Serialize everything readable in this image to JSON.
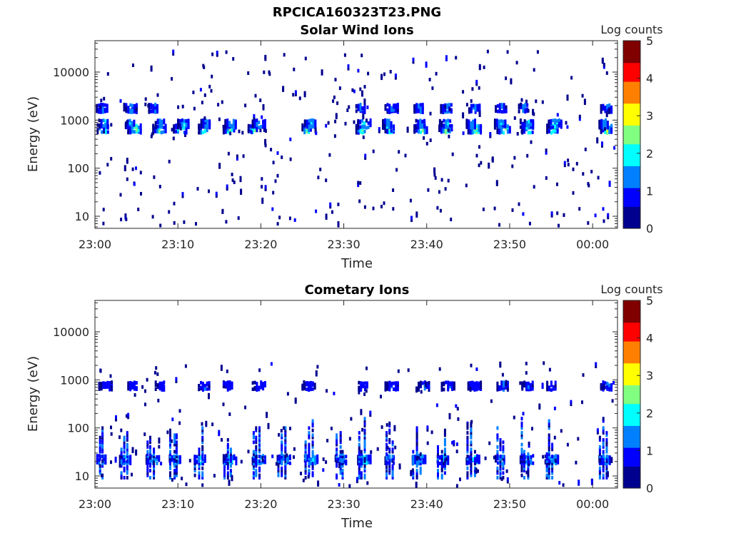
{
  "figure_title": "RPCICA160323T23.PNG",
  "colormap": [
    "#00008f",
    "#0000ff",
    "#0080ff",
    "#00ffff",
    "#80ff80",
    "#ffff00",
    "#ff8000",
    "#ff0000",
    "#800000"
  ],
  "chart_data": [
    {
      "type": "heatmap",
      "title": "Solar Wind Ions",
      "xlabel": "Time",
      "ylabel": "Energy (eV)",
      "yscale": "log",
      "ylim": [
        5.6,
        45000
      ],
      "xlim": [
        "23:00",
        "00:03"
      ],
      "xticks": [
        "23:00",
        "23:10",
        "23:20",
        "23:30",
        "23:40",
        "23:50",
        "00:00"
      ],
      "yticks": [
        "10",
        "100",
        "1000",
        "10000"
      ],
      "colorbar": {
        "label": "Log counts",
        "range": [
          0,
          5
        ],
        "ticks": [
          "0",
          "1",
          "2",
          "3",
          "4",
          "5"
        ]
      },
      "bands": [
        {
          "center_ev": 750,
          "minutes": [
            0.8,
            4.5,
            7.5,
            10,
            13,
            16,
            19,
            25.5,
            32,
            35.5,
            39,
            42,
            45.5,
            49,
            52,
            55,
            61.5
          ],
          "peak": 2.4
        },
        {
          "center_ev": 950,
          "minutes": [
            1,
            4.2,
            7.8,
            10.5,
            13.3,
            16.2,
            19.5,
            25.8,
            32.2,
            35.2,
            39.2,
            42.3,
            45.3,
            48.7,
            51.8,
            55.2,
            61.3
          ],
          "peak": 1.6
        },
        {
          "center_ev": 2000,
          "minutes": [
            0.7,
            4,
            7,
            32,
            35.5,
            39,
            42.2,
            45.6,
            48.8,
            51.6,
            61.5
          ],
          "peak": 1.2
        }
      ],
      "scatter_ev_range": [
        6,
        30000
      ],
      "scatter_count": 340
    },
    {
      "type": "heatmap",
      "title": "Cometary Ions",
      "xlabel": "Time",
      "ylabel": "Energy (eV)",
      "yscale": "log",
      "ylim": [
        5.6,
        45000
      ],
      "xlim": [
        "23:00",
        "00:03"
      ],
      "xticks": [
        "23:00",
        "23:10",
        "23:20",
        "23:30",
        "23:40",
        "23:50",
        "00:00"
      ],
      "yticks": [
        "10",
        "100",
        "1000",
        "10000"
      ],
      "colorbar": {
        "label": "Log counts",
        "range": [
          0,
          5
        ],
        "ticks": [
          "0",
          "1",
          "2",
          "3",
          "4",
          "5"
        ]
      },
      "bands": [
        {
          "center_ev": 850,
          "minutes": [
            1,
            4.5,
            7.8,
            13,
            16,
            19.5,
            25.5,
            32.3,
            35.5,
            39.5,
            42.3,
            45.5,
            49,
            52,
            55,
            61.5
          ],
          "peak": 0.9
        },
        {
          "center_ev": 25,
          "minutes": [
            0.5,
            3.5,
            6.7,
            9.5,
            12.5,
            16,
            19.5,
            22.5,
            25.8,
            29.5,
            32.2,
            35.5,
            38.8,
            41.8,
            45.3,
            48.8,
            51.8,
            54.8,
            61.3
          ],
          "peak": 1.8
        }
      ],
      "columns_ev_range": [
        10,
        200
      ],
      "scatter_ev_range": [
        6,
        2500
      ],
      "scatter_count": 200
    }
  ]
}
